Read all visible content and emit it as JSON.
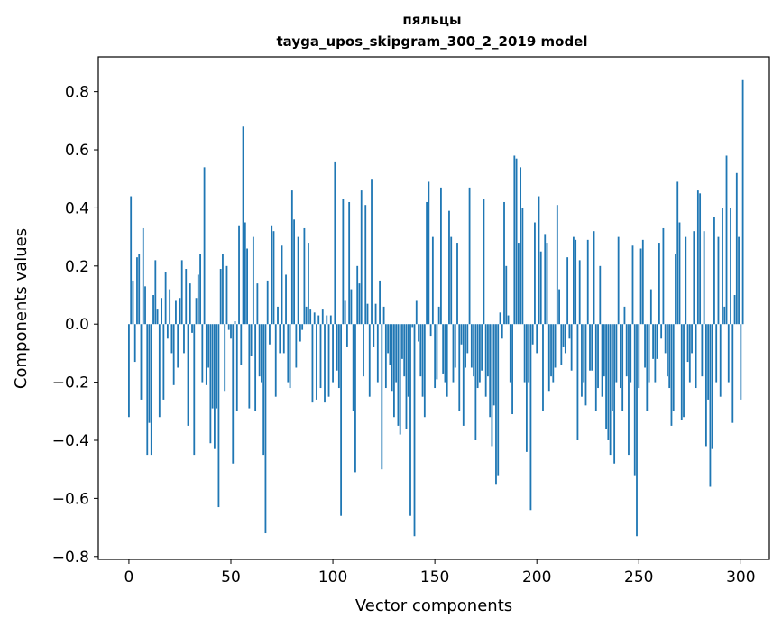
{
  "chart_data": {
    "type": "bar",
    "title_line1": "пяльцы",
    "title_line2": "tayga_upos_skipgram_300_2_2019 model",
    "xlabel": "Vector components",
    "ylabel": "Components values",
    "xlim": [
      -15,
      314
    ],
    "ylim": [
      -0.81,
      0.92
    ],
    "xticks": [
      0,
      50,
      100,
      150,
      200,
      250,
      300
    ],
    "yticks": [
      -0.8,
      -0.6,
      -0.4,
      -0.2,
      0.0,
      0.2,
      0.4,
      0.6,
      0.8
    ],
    "ytick_labels": [
      "−0.8",
      "−0.6",
      "−0.4",
      "−0.2",
      "0.0",
      "0.2",
      "0.4",
      "0.6",
      "0.8"
    ],
    "xtick_labels": [
      "0",
      "50",
      "100",
      "150",
      "200",
      "250",
      "300"
    ],
    "grid": false,
    "bar_color": "#1f77b4",
    "values": [
      -0.32,
      0.44,
      0.15,
      -0.13,
      0.23,
      0.24,
      -0.26,
      0.33,
      0.13,
      -0.45,
      -0.34,
      -0.45,
      0.1,
      0.22,
      0.05,
      -0.32,
      0.09,
      -0.26,
      0.18,
      -0.05,
      0.12,
      -0.1,
      -0.21,
      0.08,
      -0.15,
      0.09,
      0.22,
      -0.1,
      0.19,
      -0.35,
      0.14,
      -0.03,
      -0.45,
      0.09,
      0.17,
      0.24,
      -0.2,
      0.54,
      -0.21,
      -0.15,
      -0.41,
      -0.29,
      -0.43,
      -0.29,
      -0.63,
      0.19,
      0.24,
      -0.23,
      0.2,
      -0.02,
      -0.05,
      -0.48,
      0.01,
      -0.3,
      0.34,
      -0.14,
      0.68,
      0.35,
      0.26,
      -0.29,
      -0.11,
      0.3,
      -0.3,
      0.14,
      -0.18,
      -0.2,
      -0.45,
      -0.72,
      0.15,
      -0.07,
      0.34,
      0.32,
      -0.25,
      0.06,
      -0.1,
      0.27,
      -0.1,
      0.17,
      -0.2,
      -0.22,
      0.46,
      0.36,
      -0.15,
      0.3,
      -0.06,
      -0.02,
      0.33,
      0.06,
      0.28,
      0.05,
      -0.27,
      0.04,
      -0.26,
      0.03,
      -0.22,
      0.05,
      -0.27,
      0.03,
      -0.25,
      0.03,
      -0.2,
      0.56,
      -0.16,
      -0.22,
      -0.66,
      0.43,
      0.08,
      -0.08,
      0.42,
      0.12,
      -0.3,
      -0.51,
      0.2,
      0.14,
      0.46,
      -0.18,
      0.41,
      0.07,
      -0.25,
      0.5,
      -0.08,
      0.07,
      -0.2,
      0.15,
      -0.5,
      0.06,
      -0.22,
      -0.1,
      -0.14,
      -0.23,
      -0.32,
      -0.2,
      -0.35,
      -0.38,
      -0.12,
      -0.18,
      -0.36,
      -0.25,
      -0.66,
      -0.01,
      -0.73,
      0.08,
      -0.06,
      -0.18,
      -0.25,
      -0.32,
      0.42,
      0.49,
      -0.04,
      0.3,
      -0.22,
      -0.19,
      0.06,
      0.47,
      -0.17,
      -0.2,
      -0.25,
      0.39,
      0.3,
      -0.2,
      -0.15,
      0.28,
      -0.3,
      -0.07,
      -0.35,
      -0.15,
      -0.1,
      0.47,
      -0.15,
      -0.18,
      -0.4,
      -0.22,
      -0.2,
      -0.16,
      0.43,
      -0.25,
      -0.18,
      -0.32,
      -0.42,
      -0.28,
      -0.55,
      -0.52,
      0.04,
      -0.05,
      0.42,
      0.2,
      0.03,
      -0.2,
      -0.31,
      0.58,
      0.57,
      0.28,
      0.54,
      0.4,
      -0.2,
      -0.44,
      -0.2,
      -0.64,
      -0.07,
      0.35,
      -0.1,
      0.44,
      0.25,
      -0.3,
      0.31,
      0.28,
      -0.23,
      -0.18,
      -0.2,
      -0.15,
      0.41,
      0.12,
      -0.14,
      -0.08,
      -0.1,
      0.23,
      -0.05,
      -0.16,
      0.3,
      0.29,
      -0.4,
      0.22,
      -0.25,
      -0.2,
      -0.28,
      0.29,
      -0.16,
      -0.16,
      0.32,
      -0.3,
      -0.22,
      0.2,
      -0.25,
      -0.18,
      -0.36,
      -0.4,
      -0.45,
      -0.3,
      -0.48,
      -0.2,
      0.3,
      -0.22,
      -0.3,
      0.06,
      -0.18,
      -0.45,
      -0.2,
      0.27,
      -0.52,
      -0.73,
      -0.22,
      0.26,
      0.29,
      -0.15,
      -0.3,
      -0.2,
      0.12,
      -0.12,
      -0.2,
      -0.12,
      0.28,
      -0.05,
      0.33,
      -0.1,
      -0.18,
      -0.22,
      -0.35,
      -0.3,
      0.24,
      0.49,
      0.35,
      -0.33,
      -0.32,
      0.3,
      -0.13,
      -0.2,
      -0.1,
      0.32,
      -0.22,
      0.46,
      0.45,
      -0.18,
      0.32,
      -0.42,
      -0.26,
      -0.56,
      -0.43,
      0.37,
      -0.2,
      0.3,
      -0.25,
      0.4,
      0.06,
      0.58,
      -0.2,
      0.4,
      -0.34,
      0.1,
      0.52,
      0.3,
      -0.26,
      0.84
    ]
  }
}
